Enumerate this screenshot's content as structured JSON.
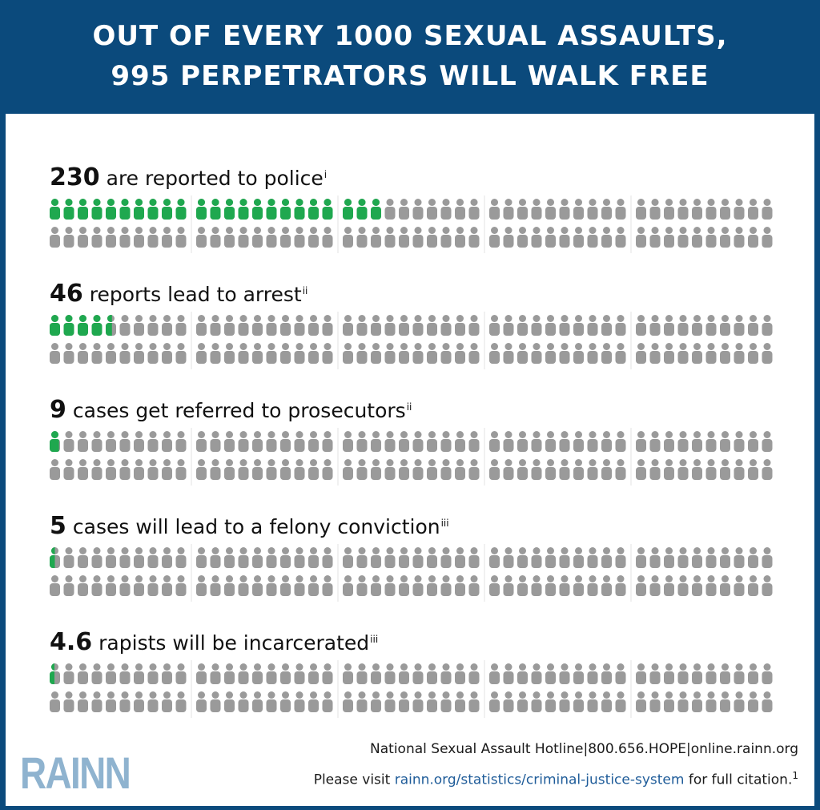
{
  "title": {
    "line1": "OUT OF EVERY 1000 SEXUAL ASSAULTS,",
    "line2": "995 PERPETRATORS WILL WALK FREE"
  },
  "chart_data": {
    "type": "pictogram",
    "total": 1000,
    "rows": [
      {
        "value": 230,
        "value_label": "230",
        "text": "are reported to police",
        "note": "i"
      },
      {
        "value": 46,
        "value_label": "46",
        "text": "reports lead to arrest",
        "note": "ii"
      },
      {
        "value": 9,
        "value_label": "9",
        "text": "cases get referred to prosecutors",
        "note": "ii"
      },
      {
        "value": 5,
        "value_label": "5",
        "text": "cases will lead to a felony conviction",
        "note": "iii"
      },
      {
        "value": 4.6,
        "value_label": "4.6",
        "text": "rapists will be incarcerated",
        "note": "iii"
      }
    ]
  },
  "colors": {
    "header_bg": "#0b4a7c",
    "highlight": "#1fa84f",
    "neutral": "#9a9a9a"
  },
  "footer": {
    "hotline": "National Sexual Assault Hotline|800.656.HOPE|online.rainn.org",
    "visit_prefix": "Please visit ",
    "visit_link": "rainn.org/statistics/criminal-justice-system",
    "visit_suffix": " for full citation.",
    "citation_mark": "1"
  },
  "logo": {
    "text": "RAINN"
  }
}
